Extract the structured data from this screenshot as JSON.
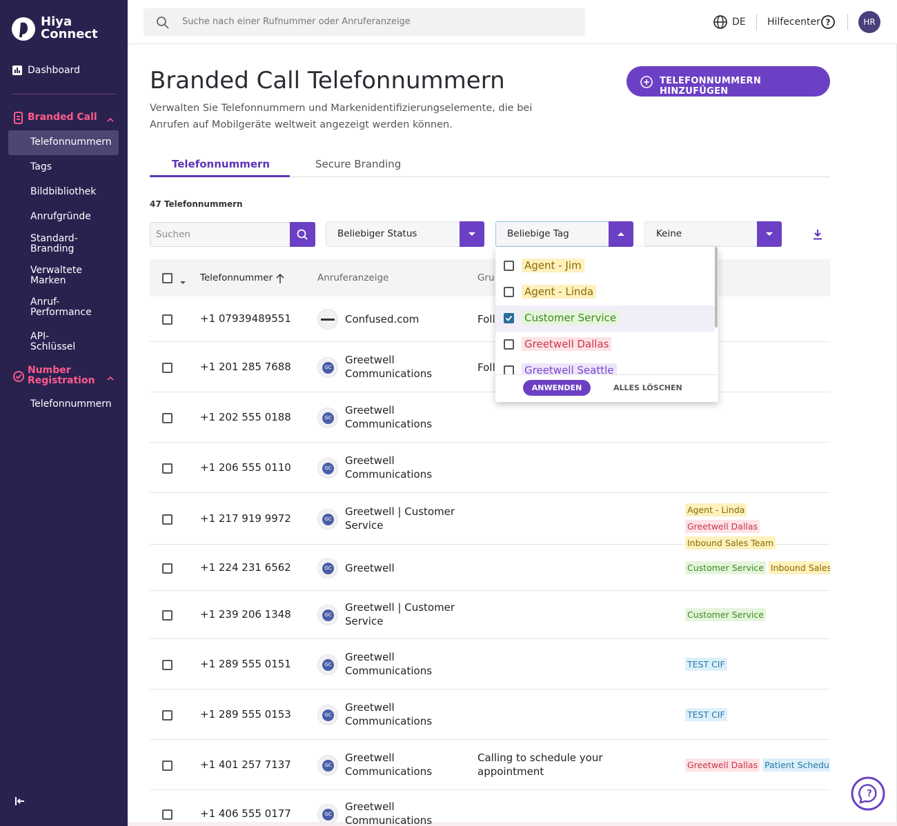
{
  "sidebar": {
    "brand": [
      "Hiya",
      "Connect"
    ],
    "dashboard": "Dashboard",
    "sections": [
      {
        "title": "Branded Call",
        "items": [
          "Telefonnummern",
          "Tags",
          "Bildbibliothek",
          "Anrufgründe",
          "Standard-Branding",
          "Verwaltete Marken",
          "Anruf-Performance",
          "API-Schlüssel"
        ]
      },
      {
        "title": "Number Registration",
        "items": [
          "Telefonnummern"
        ]
      }
    ]
  },
  "topbar": {
    "search_placeholder": "Suche nach einer Rufnummer oder Anruferanzeige",
    "language": "DE",
    "help": "Hilfecenter",
    "avatar": "HR"
  },
  "header": {
    "title": "Branded Call Telefonnummern",
    "description": "Verwalten Sie Telefonnummern und Markenidentifizierungselemente, die bei Anrufen auf Mobilgeräte weltweit angezeigt werden können.",
    "button": "TELEFONNUMMERN HINZUFÜGEN"
  },
  "tabs": [
    "Telefonnummern",
    "Secure Branding"
  ],
  "count": "47 Telefonnummern",
  "filters": {
    "search_placeholder": "Suchen",
    "status": "Beliebiger Status",
    "tag": "Beliebige Tag",
    "group": "Keine"
  },
  "dropdown": {
    "options": [
      {
        "label": "Agent - Jim",
        "checked": false,
        "bg": "#fdf1bd",
        "fg": "#8a6a00"
      },
      {
        "label": "Agent - Linda",
        "checked": false,
        "bg": "#fdf1bd",
        "fg": "#8a6a00"
      },
      {
        "label": "Customer Service",
        "checked": true,
        "bg": "#e5f5dc",
        "fg": "#3d8a1e"
      },
      {
        "label": "Greetwell Dallas",
        "checked": false,
        "bg": "#fde3e6",
        "fg": "#c93449"
      },
      {
        "label": "Greetwell Seattle",
        "checked": false,
        "bg": "#eee5fb",
        "fg": "#7a47c8"
      }
    ],
    "apply": "ANWENDEN",
    "clear": "ALLES LÖSCHEN"
  },
  "table": {
    "columns": [
      "Telefonnummer",
      "Anruferanzeige",
      "Gru"
    ],
    "rows": [
      {
        "number": "+1 07939489551",
        "display": "Confused.com",
        "group": "Foll",
        "tags": []
      },
      {
        "number": "+1 201 285 7688",
        "logo": "GC",
        "display": "Greetwell Communications",
        "group": "Foll",
        "tags": []
      },
      {
        "number": "+1 202 555 0188",
        "logo": "GC",
        "display": "Greetwell Communications",
        "tags": []
      },
      {
        "number": "+1 206 555 0110",
        "logo": "GC",
        "display": "Greetwell Communications",
        "tags": []
      },
      {
        "number": "+1 217 919 9972",
        "logo": "GC",
        "display": "Greetwell | Customer Service",
        "tags": [
          {
            "label": "Agent - Linda",
            "bg": "#fdf1bd",
            "fg": "#8a6a00"
          },
          {
            "label": "Greetwell Dallas",
            "bg": "#fde3e6",
            "fg": "#c93449"
          },
          {
            "label": "Inbound Sales Team",
            "bg": "#fdf1bd",
            "fg": "#8a6a00"
          }
        ]
      },
      {
        "number": "+1 224 231 6562",
        "logo": "GC",
        "display": "Greetwell",
        "tags": [
          {
            "label": "Customer Service",
            "bg": "#e5f5dc",
            "fg": "#3d8a1e"
          },
          {
            "label": "Inbound Sales Team",
            "bg": "#fdf1bd",
            "fg": "#8a6a00"
          }
        ]
      },
      {
        "number": "+1 239 206 1348",
        "logo": "GC",
        "display": "Greetwell | Customer Service",
        "tags": [
          {
            "label": "Customer Service",
            "bg": "#e5f5dc",
            "fg": "#3d8a1e"
          }
        ]
      },
      {
        "number": "+1 289 555 0151",
        "logo": "GC",
        "display": "Greetwell Communications",
        "tags": [
          {
            "label": "TEST CIF",
            "bg": "#dcf0fa",
            "fg": "#2676a6"
          }
        ]
      },
      {
        "number": "+1 289 555 0153",
        "logo": "GC",
        "display": "Greetwell Communications",
        "tags": [
          {
            "label": "TEST CIF",
            "bg": "#dcf0fa",
            "fg": "#2676a6"
          }
        ]
      },
      {
        "number": "+1 401 257 7137",
        "logo": "GC",
        "display": "Greetwell Communications",
        "group": "Calling to schedule your appointment",
        "tags": [
          {
            "label": "Greetwell Dallas",
            "bg": "#fde3e6",
            "fg": "#c93449"
          },
          {
            "label": "Patient Scheduling",
            "bg": "#dcf0fa",
            "fg": "#2676a6"
          }
        ]
      },
      {
        "number": "+1 406 555 0177",
        "logo": "GC",
        "display": "Greetwell Communications",
        "tags": []
      }
    ]
  }
}
